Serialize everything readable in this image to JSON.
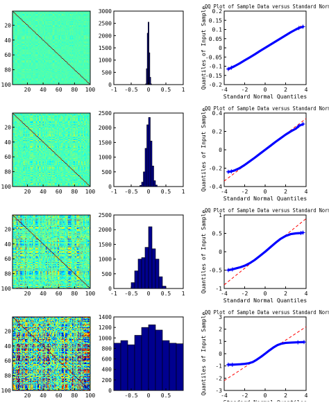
{
  "chart_data": [
    {
      "type": "heatmap",
      "panel": "row1-matrix",
      "xticks": [
        "20",
        "40",
        "60",
        "80",
        "100"
      ],
      "yticks": [
        "20",
        "40",
        "60",
        "80",
        "100"
      ],
      "xlim": [
        1,
        100
      ],
      "ylim": [
        1,
        100
      ],
      "size": 100,
      "noise_amplitude": 0.1,
      "diagonal_color": "#7f0000"
    },
    {
      "type": "bar",
      "panel": "row1-histogram",
      "x": [
        -0.075,
        -0.05,
        -0.025,
        0,
        0.025,
        0.05,
        0.075
      ],
      "values": [
        30,
        650,
        2100,
        2550,
        1300,
        300,
        30
      ],
      "xlim": [
        -1,
        1
      ],
      "ylim": [
        0,
        3000
      ],
      "xticks": [
        "-1",
        "-0.5",
        "0",
        "0.5",
        "1"
      ],
      "yticks": [
        "0",
        "500",
        "1000",
        "1500",
        "2000",
        "2500",
        "3000"
      ]
    },
    {
      "type": "scatter",
      "panel": "row1-qqplot",
      "title": "QQ Plot of Sample Data versus Standard Normal",
      "xlabel": "Standard Normal Quantiles",
      "ylabel": "Quantiles of Input Sample",
      "xlim": [
        -4,
        4
      ],
      "ylim": [
        -0.2,
        0.2
      ],
      "xticks": [
        "-4",
        "-2",
        "0",
        "2",
        "4"
      ],
      "yticks": [
        "-0.2",
        "-0.15",
        "-0.1",
        "-0.05",
        "0",
        "0.05",
        "0.1",
        "0.15",
        "0.2"
      ],
      "points": [
        [
          -3.6,
          -0.115
        ],
        [
          -3.3,
          -0.108
        ],
        [
          -3,
          -0.1
        ],
        [
          -2.5,
          -0.085
        ],
        [
          -2,
          -0.068
        ],
        [
          -1.5,
          -0.052
        ],
        [
          -1,
          -0.035
        ],
        [
          -0.5,
          -0.017
        ],
        [
          0,
          0
        ],
        [
          0.5,
          0.017
        ],
        [
          1,
          0.034
        ],
        [
          1.5,
          0.051
        ],
        [
          2,
          0.068
        ],
        [
          2.5,
          0.085
        ],
        [
          3,
          0.1
        ],
        [
          3.3,
          0.108
        ],
        [
          3.7,
          0.115
        ]
      ],
      "ref_line": [
        [
          -3.6,
          -0.122
        ],
        [
          3.6,
          0.122
        ]
      ]
    },
    {
      "type": "heatmap",
      "panel": "row2-matrix",
      "xticks": [
        "20",
        "40",
        "60",
        "80",
        "100"
      ],
      "yticks": [
        "20",
        "40",
        "60",
        "80",
        "100"
      ],
      "xlim": [
        1,
        100
      ],
      "ylim": [
        1,
        100
      ],
      "size": 100,
      "noise_amplitude": 0.25,
      "diagonal_color": "#7f0000"
    },
    {
      "type": "bar",
      "panel": "row2-histogram",
      "x": [
        -0.225,
        -0.175,
        -0.125,
        -0.075,
        -0.025,
        0.025,
        0.075,
        0.125,
        0.175,
        0.225
      ],
      "values": [
        40,
        150,
        500,
        1300,
        2100,
        2350,
        1550,
        700,
        200,
        50
      ],
      "xlim": [
        -1,
        1
      ],
      "ylim": [
        0,
        2500
      ],
      "xticks": [
        "-1",
        "-0.5",
        "0",
        "0.5",
        "1"
      ],
      "yticks": [
        "0",
        "500",
        "1000",
        "1500",
        "2000",
        "2500"
      ]
    },
    {
      "type": "scatter",
      "panel": "row2-qqplot",
      "title": "QQ Plot of Sample Data versus Standard Normal",
      "xlabel": "Standard Normal Quantiles",
      "ylabel": "Quantiles of Input Sample",
      "xlim": [
        -4,
        4
      ],
      "ylim": [
        -0.4,
        0.4
      ],
      "xticks": [
        "-4",
        "-2",
        "0",
        "2",
        "4"
      ],
      "yticks": [
        "-0.4",
        "-0.2",
        "0",
        "0.2",
        "0.4"
      ],
      "points": [
        [
          -3.6,
          -0.24
        ],
        [
          -3.3,
          -0.235
        ],
        [
          -3,
          -0.225
        ],
        [
          -2.5,
          -0.2
        ],
        [
          -2,
          -0.165
        ],
        [
          -1.5,
          -0.125
        ],
        [
          -1,
          -0.085
        ],
        [
          -0.5,
          -0.042
        ],
        [
          0,
          0
        ],
        [
          0.5,
          0.042
        ],
        [
          1,
          0.085
        ],
        [
          1.5,
          0.125
        ],
        [
          2,
          0.165
        ],
        [
          2.5,
          0.2
        ],
        [
          3,
          0.23
        ],
        [
          3.3,
          0.26
        ],
        [
          3.7,
          0.28
        ]
      ],
      "ref_line": [
        [
          -4,
          -0.34
        ],
        [
          4,
          0.34
        ]
      ]
    },
    {
      "type": "heatmap",
      "panel": "row3-matrix",
      "xticks": [
        "20",
        "40",
        "60",
        "80",
        "100"
      ],
      "yticks": [
        "20",
        "40",
        "60",
        "80",
        "100"
      ],
      "xlim": [
        1,
        100
      ],
      "ylim": [
        1,
        100
      ],
      "size": 100,
      "noise_amplitude": 0.5,
      "diagonal_color": "#7f0000"
    },
    {
      "type": "bar",
      "panel": "row3-histogram",
      "x": [
        -0.45,
        -0.35,
        -0.25,
        -0.15,
        -0.05,
        0.05,
        0.15,
        0.25,
        0.35,
        0.45
      ],
      "values": [
        200,
        600,
        1000,
        1050,
        1400,
        2100,
        1350,
        1000,
        400,
        80
      ],
      "xlim": [
        -1,
        1
      ],
      "ylim": [
        0,
        2500
      ],
      "xticks": [
        "-1",
        "-0.5",
        "0",
        "0.5",
        "1"
      ],
      "yticks": [
        "0",
        "500",
        "1000",
        "1500",
        "2000",
        "2500"
      ]
    },
    {
      "type": "scatter",
      "panel": "row3-qqplot",
      "title": "QQ Plot of Sample Data versus Standard Normal",
      "xlabel": "Standard Normal Quantiles",
      "ylabel": "Quantiles of Input Sample",
      "xlim": [
        -4,
        4
      ],
      "ylim": [
        -1,
        1
      ],
      "xticks": [
        "-4",
        "-2",
        "0",
        "2",
        "4"
      ],
      "yticks": [
        "-1",
        "-0.5",
        "0",
        "0.5",
        "1"
      ],
      "points": [
        [
          -3.6,
          -0.5
        ],
        [
          -3.2,
          -0.48
        ],
        [
          -2.8,
          -0.45
        ],
        [
          -2.4,
          -0.42
        ],
        [
          -2,
          -0.38
        ],
        [
          -1.5,
          -0.31
        ],
        [
          -1,
          -0.22
        ],
        [
          -0.5,
          -0.11
        ],
        [
          0,
          0
        ],
        [
          0.5,
          0.12
        ],
        [
          1,
          0.24
        ],
        [
          1.5,
          0.35
        ],
        [
          2,
          0.43
        ],
        [
          2.5,
          0.48
        ],
        [
          3,
          0.5
        ],
        [
          3.5,
          0.51
        ],
        [
          3.7,
          0.52
        ]
      ],
      "ref_line": [
        [
          -4,
          -0.9
        ],
        [
          4,
          0.9
        ]
      ]
    },
    {
      "type": "heatmap",
      "panel": "row4-matrix",
      "xticks": [
        "20",
        "40",
        "60",
        "80",
        "100"
      ],
      "yticks": [
        "20",
        "40",
        "60",
        "80",
        "100"
      ],
      "xlim": [
        1,
        100
      ],
      "ylim": [
        1,
        100
      ],
      "size": 100,
      "noise_amplitude": 1.0,
      "diagonal_color": "#7f0000"
    },
    {
      "type": "bar",
      "panel": "row4-histogram",
      "x": [
        -0.9,
        -0.7,
        -0.5,
        -0.3,
        -0.1,
        0.1,
        0.3,
        0.5,
        0.7,
        0.9
      ],
      "values": [
        900,
        950,
        870,
        1050,
        1200,
        1250,
        1150,
        950,
        900,
        890
      ],
      "xlim": [
        -1,
        1
      ],
      "ylim": [
        0,
        1400
      ],
      "xticks": [
        "-0.5",
        "0",
        "0.5"
      ],
      "yticks": [
        "0",
        "200",
        "400",
        "600",
        "800",
        "1000",
        "1200",
        "1400"
      ]
    },
    {
      "type": "scatter",
      "panel": "row4-qqplot",
      "title": "QQ Plot of Sample Data versus Standard Normal",
      "xlabel": "Standard Normal Quantiles",
      "ylabel": "Quantiles of Input Sample",
      "xlim": [
        -4,
        4
      ],
      "ylim": [
        -3,
        3
      ],
      "xticks": [
        "-4",
        "-2",
        "0",
        "2",
        "4"
      ],
      "yticks": [
        "-3",
        "-2",
        "-1",
        "0",
        "1",
        "2",
        "3"
      ],
      "points": [
        [
          -3.6,
          -0.9
        ],
        [
          -3.2,
          -0.9
        ],
        [
          -2.8,
          -0.88
        ],
        [
          -2.4,
          -0.86
        ],
        [
          -2,
          -0.83
        ],
        [
          -1.6,
          -0.78
        ],
        [
          -1.2,
          -0.68
        ],
        [
          -0.8,
          -0.48
        ],
        [
          -0.4,
          -0.25
        ],
        [
          0,
          0
        ],
        [
          0.4,
          0.26
        ],
        [
          0.8,
          0.5
        ],
        [
          1.2,
          0.7
        ],
        [
          1.6,
          0.82
        ],
        [
          2,
          0.88
        ],
        [
          2.6,
          0.91
        ],
        [
          3.2,
          0.93
        ],
        [
          3.8,
          0.95
        ]
      ],
      "ref_line": [
        [
          -4,
          -2.2
        ],
        [
          4,
          2.2
        ]
      ]
    }
  ]
}
